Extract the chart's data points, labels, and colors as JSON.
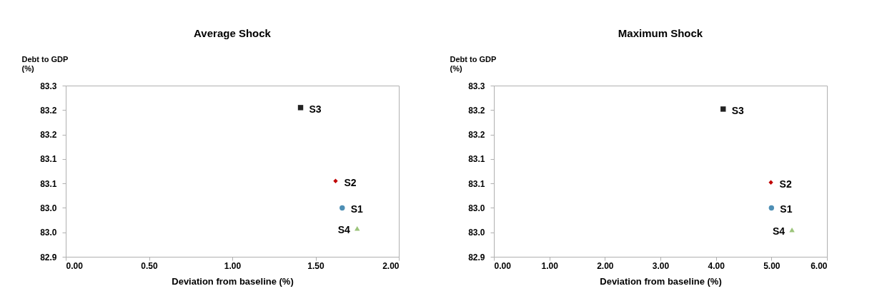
{
  "chart_data": [
    {
      "type": "scatter",
      "title": "Average Shock",
      "xlabel": "Deviation from baseline (%)",
      "ylabel": "Debt to GDP (%)",
      "xlim": [
        0,
        2
      ],
      "xticks": [
        {
          "value": 0,
          "label": "0.00"
        },
        {
          "value": 0.5,
          "label": "0.50"
        },
        {
          "value": 1,
          "label": "1.00"
        },
        {
          "value": 1.5,
          "label": "1.50"
        },
        {
          "value": 2,
          "label": "2.00"
        }
      ],
      "ylim": [
        82.9,
        83.25
      ],
      "yticks": [
        82.9,
        {
          "value": 82.95,
          "label": "83.0"
        },
        {
          "value": 83.0,
          "label": "83.0"
        },
        {
          "value": 83.05,
          "label": "83.1"
        },
        83.1,
        {
          "value": 83.15,
          "label": "83.2"
        },
        83.2,
        {
          "value": 83.25,
          "label": "83.3"
        }
      ],
      "series": [
        {
          "name": "S1",
          "color": "#4e8fb5",
          "marker": "circle",
          "x": [
            1.66
          ],
          "values": [
            83.0
          ]
        },
        {
          "name": "S2",
          "color": "#c00000",
          "marker": "diamond",
          "x": [
            1.62
          ],
          "values": [
            83.055
          ]
        },
        {
          "name": "S3",
          "color": "#222222",
          "marker": "square",
          "x": [
            1.41
          ],
          "values": [
            83.205
          ]
        },
        {
          "name": "S4",
          "color": "#9bc47a",
          "marker": "triangle",
          "x": [
            1.75
          ],
          "values": [
            82.958
          ]
        }
      ]
    },
    {
      "type": "scatter",
      "title": "Maximum Shock",
      "xlabel": "Deviation from baseline (%)",
      "ylabel": "Debt to GDP (%)",
      "xlim": [
        0,
        6
      ],
      "xticks": [
        {
          "value": 0,
          "label": "0.00"
        },
        {
          "value": 1,
          "label": "1.00"
        },
        {
          "value": 2,
          "label": "2.00"
        },
        {
          "value": 3,
          "label": "3.00"
        },
        {
          "value": 4,
          "label": "4.00"
        },
        {
          "value": 5,
          "label": "5.00"
        },
        {
          "value": 6,
          "label": "6.00"
        }
      ],
      "ylim": [
        82.9,
        83.25
      ],
      "yticks": [
        82.9,
        {
          "value": 82.95,
          "label": "83.0"
        },
        {
          "value": 83.0,
          "label": "83.0"
        },
        {
          "value": 83.05,
          "label": "83.1"
        },
        83.1,
        {
          "value": 83.15,
          "label": "83.2"
        },
        83.2,
        {
          "value": 83.25,
          "label": "83.3"
        }
      ],
      "series": [
        {
          "name": "S1",
          "color": "#4e8fb5",
          "marker": "circle",
          "x": [
            5.0
          ],
          "values": [
            83.0
          ]
        },
        {
          "name": "S2",
          "color": "#c00000",
          "marker": "diamond",
          "x": [
            4.99
          ],
          "values": [
            83.052
          ]
        },
        {
          "name": "S3",
          "color": "#222222",
          "marker": "square",
          "x": [
            4.13
          ],
          "values": [
            83.202
          ]
        },
        {
          "name": "S4",
          "color": "#9bc47a",
          "marker": "triangle",
          "x": [
            5.37
          ],
          "values": [
            82.955
          ]
        }
      ]
    }
  ]
}
